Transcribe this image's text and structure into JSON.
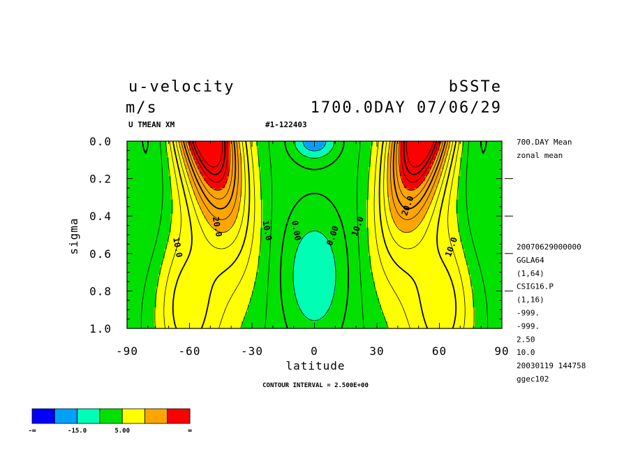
{
  "header": {
    "title": "u-velocity",
    "experiment": "bSSTe",
    "units": "m/s",
    "time": "1700.0DAY 07/06/29",
    "varname": "U TMEAN XM",
    "record": "#1-122403"
  },
  "side_info": {
    "top": [
      "700.DAY Mean",
      "zonal mean"
    ],
    "bottom": [
      "20070629000000",
      "GGLA64",
      "(1,64)",
      "CSIG16.P",
      "(1,16)",
      "-999.",
      "-999.",
      "2.50",
      "10.0",
      "20030119 144758",
      "ggec102"
    ]
  },
  "contour_interval": "CONTOUR INTERVAL = 2.500E+00",
  "colorbar": {
    "colors": [
      "#0000ff",
      "#00a0ff",
      "#00ffb4",
      "#00e100",
      "#ffff00",
      "#ffa500",
      "#ff0000"
    ],
    "labels": [
      "-∞",
      "-15.0",
      "5.00",
      "∞"
    ]
  },
  "chart_data": {
    "type": "contour",
    "xlabel": "latitude",
    "ylabel": "sigma",
    "xlim": [
      -90,
      90
    ],
    "ylim": [
      1.0,
      0.0
    ],
    "xticks": [
      "-90",
      "-60",
      "-30",
      "0",
      "30",
      "60",
      "90"
    ],
    "yticks": [
      "0.0",
      "0.2",
      "0.4",
      "0.6",
      "0.8",
      "1.0"
    ],
    "contour_interval": 2.5,
    "contour_labels": [
      {
        "text": "10.0",
        "lat": -67,
        "sigma": 0.57
      },
      {
        "text": "20.0",
        "lat": -48,
        "sigma": 0.46
      },
      {
        "text": "10.0",
        "lat": -24,
        "sigma": 0.48
      },
      {
        "text": "0.00",
        "lat": -10,
        "sigma": 0.48
      },
      {
        "text": "0.00",
        "lat": 10,
        "sigma": 0.51
      },
      {
        "text": "10.0",
        "lat": 22,
        "sigma": 0.46
      },
      {
        "text": "20.0",
        "lat": 46,
        "sigma": 0.35
      },
      {
        "text": "10.0",
        "lat": 67,
        "sigma": 0.57
      }
    ],
    "jets": [
      {
        "name": "southern-jet",
        "lat": -52,
        "sigma": 0.05,
        "max": 30
      },
      {
        "name": "northern-jet",
        "lat": 52,
        "sigma": 0.05,
        "max": 30
      }
    ],
    "easterly_regions": [
      {
        "lat": 0,
        "sigma": 0.04
      },
      {
        "lat": -14,
        "sigma": 0.93
      },
      {
        "lat": 14,
        "sigma": 0.93
      }
    ]
  }
}
